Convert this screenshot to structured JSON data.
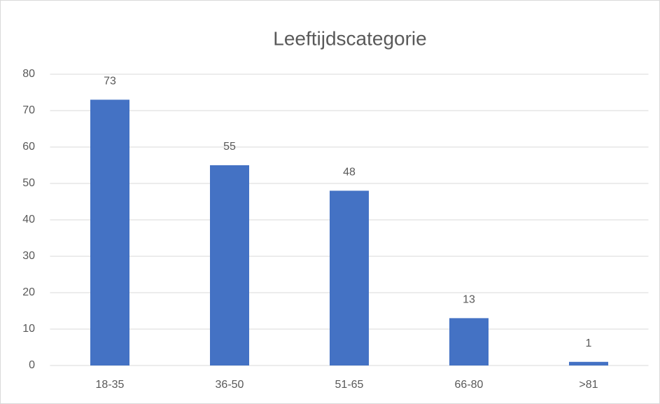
{
  "chart_data": {
    "type": "bar",
    "title": "Leeftijdscategorie",
    "categories": [
      "18-35",
      "36-50",
      "51-65",
      "66-80",
      ">81"
    ],
    "values": [
      73,
      55,
      48,
      13,
      1
    ],
    "color": "#4472c4",
    "ylim": [
      0,
      80
    ],
    "yticks": [
      0,
      10,
      20,
      30,
      40,
      50,
      60,
      70,
      80
    ],
    "grid": true
  }
}
